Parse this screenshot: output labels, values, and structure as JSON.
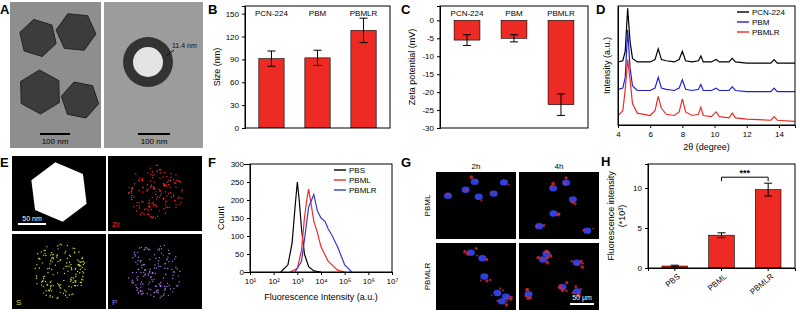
{
  "chart_data": [
    {
      "panel": "B",
      "type": "bar",
      "ylabel": "Size (nm)",
      "categories": [
        "PCN-224",
        "PBM",
        "PBMLR"
      ],
      "values": [
        91,
        92,
        128
      ],
      "errors": [
        10,
        10,
        16
      ],
      "color": "#ee2a24",
      "ylim": [
        0,
        160
      ],
      "yticks": [
        0,
        30,
        60,
        90,
        120,
        150
      ]
    },
    {
      "panel": "C",
      "type": "bar",
      "ylabel": "Zeta potential (mV)",
      "categories": [
        "PCN-224",
        "PBM",
        "PBMLR"
      ],
      "values": [
        -5.5,
        -5,
        -23.5
      ],
      "errors": [
        1.5,
        1,
        3
      ],
      "color": "#ee2a24",
      "ylim": [
        -30,
        4
      ],
      "yticks": [
        0,
        -5,
        -10,
        -15,
        -20,
        -25,
        -30
      ]
    },
    {
      "panel": "D",
      "type": "line",
      "xlabel": "2θ (degree)",
      "ylabel": "Intensity (a.u.)",
      "x": [
        4.0,
        4.3,
        4.45,
        4.6,
        4.75,
        4.9,
        5.2,
        6.0,
        6.3,
        6.5,
        6.7,
        7.0,
        7.5,
        7.8,
        8.0,
        8.2,
        8.6,
        9.0,
        9.15,
        9.3,
        9.8,
        10.1,
        10.3,
        10.9,
        11.1,
        11.3,
        12.0,
        13.5,
        13.7,
        13.9,
        15.0
      ],
      "series": [
        {
          "name": "PCN-224",
          "color": "#000000",
          "values": [
            53,
            54,
            62,
            98,
            70,
            56,
            53,
            53,
            55,
            64,
            55,
            54,
            53,
            55,
            62,
            54,
            53,
            54,
            58,
            53,
            53,
            55,
            53,
            53,
            56,
            53,
            52,
            52,
            55,
            52,
            52
          ]
        },
        {
          "name": "PBM",
          "color": "#2020d0",
          "values": [
            30,
            31,
            40,
            80,
            48,
            33,
            29,
            29,
            31,
            40,
            31,
            30,
            29,
            31,
            38,
            30,
            29,
            30,
            34,
            29,
            29,
            31,
            29,
            29,
            32,
            29,
            28,
            28,
            31,
            28,
            28
          ]
        },
        {
          "name": "PBMLR",
          "color": "#ee2a24",
          "values": [
            8,
            12,
            30,
            55,
            38,
            18,
            10,
            8,
            12,
            24,
            14,
            9,
            8,
            11,
            22,
            11,
            8,
            9,
            15,
            8,
            7,
            11,
            7,
            6,
            10,
            6,
            5,
            4,
            7,
            4,
            3
          ]
        }
      ],
      "xlim": [
        4,
        15
      ],
      "xticks": [
        4,
        6,
        8,
        10,
        12,
        14
      ],
      "ylim": [
        0,
        100
      ],
      "tick_labels": "x",
      "legend": "top-right"
    },
    {
      "panel": "F",
      "type": "line",
      "xlabel": "Fluorescence Intensity (a.u.)",
      "ylabel": "Count",
      "log": "x",
      "series": [
        {
          "name": "PBS",
          "color": "#000000",
          "x": [
            200,
            400,
            600,
            800,
            1000,
            1200,
            1500,
            2000,
            3000,
            5000,
            10000
          ],
          "values": [
            0,
            20,
            80,
            180,
            250,
            200,
            120,
            50,
            15,
            3,
            0
          ]
        },
        {
          "name": "PBML",
          "color": "#ee2a24",
          "x": [
            500,
            1000,
            1500,
            2000,
            2500,
            3000,
            4000,
            5000,
            7000,
            10000,
            20000,
            50000,
            100000
          ],
          "values": [
            0,
            10,
            60,
            150,
            200,
            230,
            180,
            140,
            110,
            70,
            30,
            5,
            0
          ]
        },
        {
          "name": "PBMLR",
          "color": "#3a3ad0",
          "x": [
            800,
            1500,
            2000,
            3000,
            4000,
            5000,
            7000,
            10000,
            15000,
            20000,
            30000,
            50000,
            100000,
            200000
          ],
          "values": [
            0,
            30,
            90,
            180,
            200,
            215,
            170,
            150,
            140,
            120,
            100,
            70,
            20,
            0
          ]
        }
      ],
      "xlim": [
        10,
        10000000
      ],
      "xticks": [
        {
          "value": 10,
          "label": "10¹"
        },
        {
          "value": 100,
          "label": "10²"
        },
        {
          "value": 1000,
          "label": "10³"
        },
        {
          "value": 10000,
          "label": "10⁴"
        },
        {
          "value": 100000,
          "label": "10⁵"
        },
        {
          "value": 1000000,
          "label": "10⁶"
        },
        {
          "value": 10000000,
          "label": "10⁷"
        }
      ],
      "ylim": [
        0,
        300
      ],
      "yticks": [
        0,
        50,
        100,
        150,
        200,
        250,
        300
      ],
      "legend": "top-right"
    },
    {
      "panel": "H",
      "type": "bar",
      "ylabel": [
        "Fluorescence intensity",
        "(*10³)"
      ],
      "categories": [
        "PBS",
        "PBML",
        "PBMLR"
      ],
      "values": [
        0.25,
        4.1,
        9.8
      ],
      "errors": [
        0.1,
        0.3,
        0.8
      ],
      "color": "#ee2a24",
      "ylim": [
        0,
        13
      ],
      "yticks": [
        0,
        5,
        10
      ],
      "annotations": [
        {
          "text": "***",
          "from": 1,
          "to": 2
        }
      ]
    }
  ],
  "image_panels": [
    {
      "panel": "A",
      "type": "image",
      "scale_bars": [
        "100 nm",
        "100 nm"
      ],
      "annotation": "11.4 nm"
    },
    {
      "panel": "E",
      "type": "image",
      "scale_bar": "50 nm",
      "maps": [
        {
          "name": "Zr",
          "color": "#ff2a2a"
        },
        {
          "name": "S",
          "color": "#d8d82a"
        },
        {
          "name": "P",
          "color": "#a878e8"
        }
      ]
    },
    {
      "panel": "G",
      "type": "image",
      "columns": [
        "2h",
        "4h"
      ],
      "rows": [
        "PBML",
        "PBMLR"
      ],
      "scale_bar": "50 μm"
    }
  ]
}
